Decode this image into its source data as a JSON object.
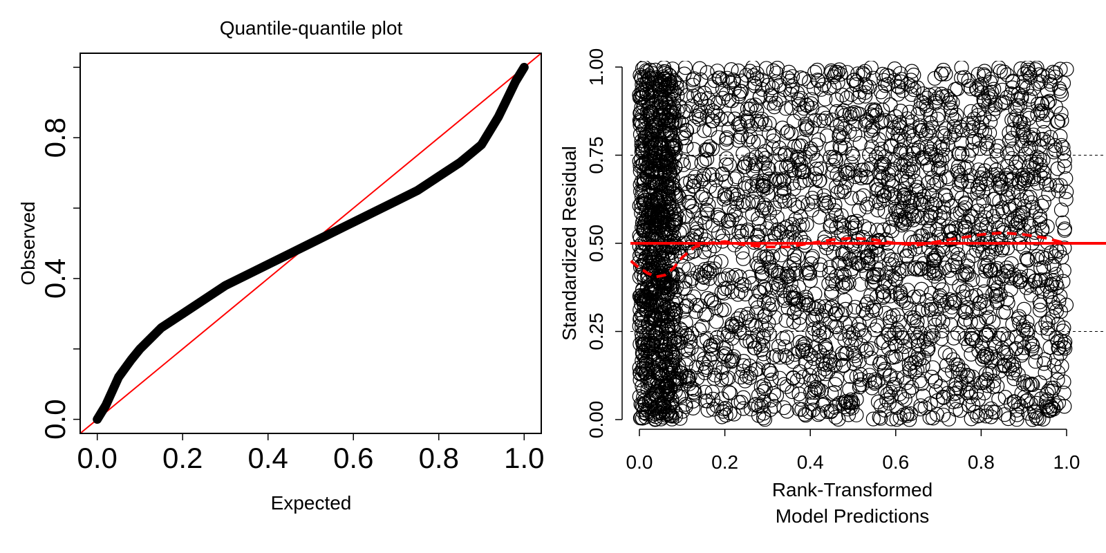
{
  "chart_data": [
    {
      "type": "line",
      "title": "Quantile-quantile plot",
      "xlabel": "Expected",
      "ylabel": "Observed",
      "xlim": [
        -0.04,
        1.04
      ],
      "ylim": [
        -0.04,
        1.04
      ],
      "grid": false,
      "x_ticks": [
        0.0,
        0.2,
        0.4,
        0.6,
        0.8,
        1.0
      ],
      "x_tick_labels": [
        "0.0",
        "0.2",
        "0.4",
        "0.6",
        "0.8",
        "1.0"
      ],
      "y_ticks": [
        0.0,
        0.2,
        0.4,
        0.6,
        0.8,
        1.0
      ],
      "y_tick_labels": [
        "0.0",
        "",
        "0.4",
        "",
        "0.8",
        ""
      ],
      "series": [
        {
          "style": "thick-points",
          "x": [
            0.0,
            0.02,
            0.05,
            0.08,
            0.1,
            0.15,
            0.2,
            0.25,
            0.3,
            0.35,
            0.4,
            0.45,
            0.5,
            0.55,
            0.6,
            0.65,
            0.7,
            0.75,
            0.8,
            0.85,
            0.88,
            0.9,
            0.92,
            0.94,
            0.96,
            0.98,
            1.0
          ],
          "y": [
            0.0,
            0.04,
            0.12,
            0.17,
            0.2,
            0.26,
            0.3,
            0.34,
            0.38,
            0.41,
            0.44,
            0.47,
            0.5,
            0.53,
            0.56,
            0.59,
            0.62,
            0.65,
            0.69,
            0.73,
            0.76,
            0.78,
            0.82,
            0.86,
            0.91,
            0.96,
            1.0
          ],
          "color": "#000000"
        },
        {
          "style": "reference-line",
          "x": [
            -0.04,
            1.04
          ],
          "y": [
            -0.04,
            1.04
          ],
          "color": "#ff0000"
        }
      ]
    },
    {
      "type": "scatter",
      "title": "",
      "xlabel": "Rank-Transformed\nModel Predictions",
      "xlabel_lines": [
        "Rank-Transformed",
        "Model Predictions"
      ],
      "ylabel": "Standardized Residual",
      "xlim": [
        -0.02,
        1.0
      ],
      "ylim": [
        -0.03,
        1.03
      ],
      "grid": false,
      "x_ticks": [
        0.0,
        0.2,
        0.4,
        0.6,
        0.8,
        1.0
      ],
      "x_tick_labels": [
        "0.0",
        "0.2",
        "0.4",
        "0.6",
        "0.8",
        "1.0"
      ],
      "y_ticks": [
        0.0,
        0.25,
        0.5,
        0.75,
        1.0
      ],
      "y_tick_labels": [
        "0.00",
        "0.25",
        "0.50",
        "0.75",
        "1.00"
      ],
      "reference_dashed_y": [
        0.25,
        0.75
      ],
      "reference_solid_y": 0.5,
      "smooth_curve": {
        "x": [
          -0.02,
          0.0,
          0.02,
          0.04,
          0.06,
          0.08,
          0.1,
          0.13,
          0.16,
          0.2,
          0.25,
          0.3,
          0.35,
          0.4,
          0.45,
          0.5,
          0.55,
          0.6,
          0.65,
          0.7,
          0.75,
          0.8,
          0.85,
          0.9,
          0.95,
          1.0
        ],
        "y": [
          0.45,
          0.43,
          0.415,
          0.405,
          0.41,
          0.43,
          0.46,
          0.49,
          0.5,
          0.505,
          0.495,
          0.49,
          0.49,
          0.5,
          0.51,
          0.515,
          0.51,
          0.5,
          0.495,
          0.505,
          0.515,
          0.525,
          0.53,
          0.525,
          0.515,
          0.5
        ],
        "color": "#ff0000",
        "style": "dashed"
      },
      "points": "dense open-circle scatter filling the full range x 0-1, y 0-1",
      "point_color": "#000000",
      "ref_color": "#ff0000"
    }
  ]
}
